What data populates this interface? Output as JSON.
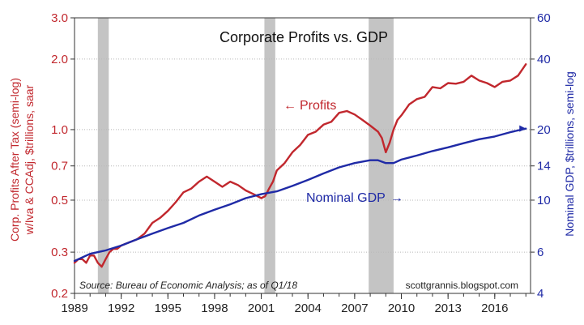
{
  "chart_data": {
    "type": "line",
    "title": "Corporate Profits vs. GDP",
    "ylabel_left_line1": "Corp. Profits After Tax (semi-log)",
    "ylabel_left_line2": "w/Iva & CCAdj, $trillions, saar",
    "ylabel_right": "Nominal GDP, $trillions, semi-log",
    "source": "Source: Bureau of Economic Analysis; as of Q1/18",
    "credit": "scottgrannis.blogspot.com",
    "x_range": [
      1989,
      2018.3
    ],
    "x_ticks": [
      "1989",
      "1992",
      "1995",
      "1998",
      "2001",
      "2004",
      "2007",
      "2010",
      "2013",
      "2016"
    ],
    "y_left": {
      "scale": "log",
      "range": [
        0.2,
        3.0
      ],
      "ticks": [
        "0.2",
        "0.3",
        "0.5",
        "0.7",
        "1.0",
        "2.0",
        "3.0"
      ]
    },
    "y_right": {
      "scale": "log",
      "range": [
        4,
        60
      ],
      "ticks": [
        "4",
        "6",
        "10",
        "14",
        "20",
        "40",
        "60"
      ]
    },
    "grid": "horizontal dotted",
    "recessions": [
      [
        1990.5,
        1991.2
      ],
      [
        2001.2,
        2001.9
      ],
      [
        2007.9,
        2009.5
      ]
    ],
    "series": [
      {
        "name": "Profits",
        "axis": "left",
        "color": "#c1272d",
        "x": [
          1989.0,
          1989.25,
          1989.5,
          1989.75,
          1990.0,
          1990.25,
          1990.5,
          1990.75,
          1991.0,
          1991.25,
          1991.5,
          1991.75,
          1992.0,
          1992.5,
          1993.0,
          1993.5,
          1994.0,
          1994.5,
          1995.0,
          1995.5,
          1996.0,
          1996.5,
          1997.0,
          1997.5,
          1998.0,
          1998.5,
          1999.0,
          1999.5,
          2000.0,
          2000.5,
          2001.0,
          2001.25,
          2001.5,
          2001.75,
          2002.0,
          2002.5,
          2003.0,
          2003.5,
          2004.0,
          2004.5,
          2005.0,
          2005.5,
          2006.0,
          2006.5,
          2007.0,
          2007.5,
          2008.0,
          2008.5,
          2008.75,
          2009.0,
          2009.25,
          2009.5,
          2009.75,
          2010.0,
          2010.5,
          2011.0,
          2011.5,
          2012.0,
          2012.5,
          2013.0,
          2013.5,
          2014.0,
          2014.5,
          2015.0,
          2015.5,
          2016.0,
          2016.5,
          2017.0,
          2017.5,
          2018.0
        ],
        "values": [
          0.27,
          0.28,
          0.28,
          0.27,
          0.29,
          0.29,
          0.27,
          0.26,
          0.28,
          0.3,
          0.31,
          0.31,
          0.32,
          0.33,
          0.34,
          0.36,
          0.4,
          0.42,
          0.45,
          0.49,
          0.54,
          0.56,
          0.6,
          0.63,
          0.6,
          0.57,
          0.6,
          0.58,
          0.55,
          0.53,
          0.51,
          0.52,
          0.56,
          0.6,
          0.67,
          0.72,
          0.8,
          0.86,
          0.95,
          0.98,
          1.05,
          1.08,
          1.18,
          1.2,
          1.16,
          1.1,
          1.04,
          0.98,
          0.92,
          0.8,
          0.88,
          1.0,
          1.1,
          1.15,
          1.28,
          1.35,
          1.38,
          1.52,
          1.5,
          1.58,
          1.57,
          1.6,
          1.7,
          1.62,
          1.58,
          1.52,
          1.6,
          1.62,
          1.7,
          1.9
        ]
      },
      {
        "name": "Nominal GDP",
        "axis": "right",
        "color": "#1f2aa6",
        "x": [
          1989.0,
          1990.0,
          1991.0,
          1992.0,
          1993.0,
          1994.0,
          1995.0,
          1996.0,
          1997.0,
          1998.0,
          1999.0,
          2000.0,
          2001.0,
          2002.0,
          2003.0,
          2004.0,
          2005.0,
          2006.0,
          2007.0,
          2008.0,
          2008.5,
          2009.0,
          2009.5,
          2010.0,
          2011.0,
          2012.0,
          2013.0,
          2014.0,
          2015.0,
          2016.0,
          2017.0,
          2018.0
        ],
        "values": [
          5.5,
          5.9,
          6.1,
          6.4,
          6.8,
          7.2,
          7.6,
          8.0,
          8.6,
          9.1,
          9.6,
          10.2,
          10.6,
          10.9,
          11.5,
          12.2,
          13.0,
          13.8,
          14.4,
          14.8,
          14.8,
          14.4,
          14.4,
          14.9,
          15.5,
          16.2,
          16.8,
          17.5,
          18.2,
          18.7,
          19.5,
          20.2
        ]
      }
    ],
    "annotations": {
      "profits_label": "Profits",
      "profits_arrow": "←",
      "gdp_label": "Nominal GDP",
      "gdp_arrow": "→"
    }
  }
}
